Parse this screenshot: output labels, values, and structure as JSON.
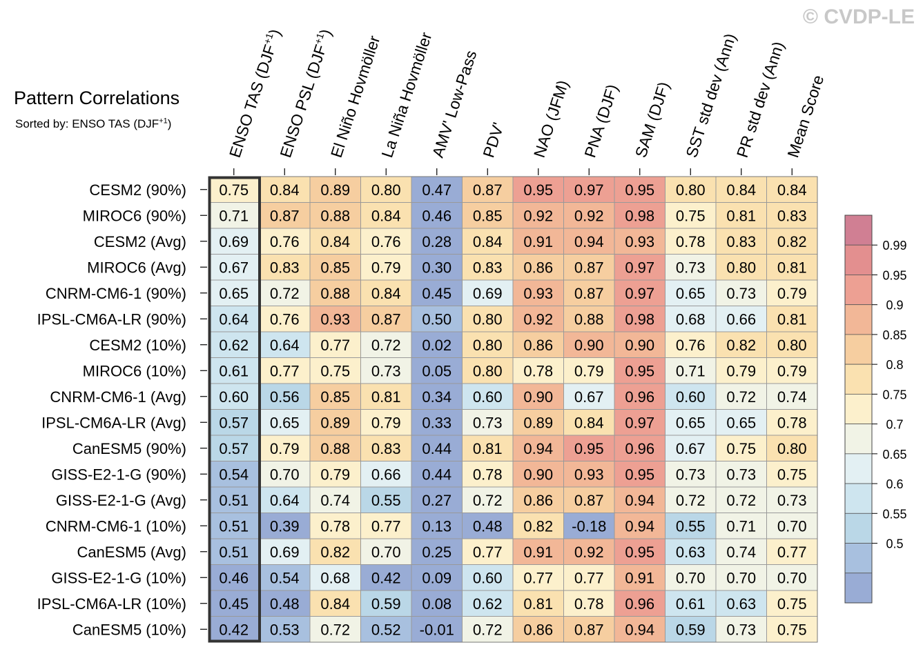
{
  "watermark": "© CVDP-LE",
  "title": "Pattern Correlations",
  "subtitle": "Sorted by: ENSO TAS (DJF+1)",
  "chart_data": {
    "type": "heatmap",
    "title": "Pattern Correlations",
    "subtitle": "Sorted by: ENSO TAS (DJF+1)",
    "columns": [
      "ENSO TAS (DJF+1)",
      "ENSO PSL (DJF+1)",
      "El Niño Hovmöller",
      "La Niña Hovmöller",
      "AMV' Low-Pass",
      "PDV'",
      "NAO (JFM)",
      "PNA (DJF)",
      "SAM (DJF)",
      "SST std dev (Ann)",
      "PR std dev (Ann)",
      "Mean Score"
    ],
    "rows": [
      "CESM2 (90%)",
      "MIROC6 (90%)",
      "CESM2 (Avg)",
      "MIROC6 (Avg)",
      "CNRM-CM6-1 (90%)",
      "IPSL-CM6A-LR (90%)",
      "CESM2 (10%)",
      "MIROC6 (10%)",
      "CNRM-CM6-1 (Avg)",
      "IPSL-CM6A-LR (Avg)",
      "CanESM5 (90%)",
      "GISS-E2-1-G (90%)",
      "GISS-E2-1-G (Avg)",
      "CNRM-CM6-1 (10%)",
      "CanESM5 (Avg)",
      "GISS-E2-1-G (10%)",
      "IPSL-CM6A-LR (10%)",
      "CanESM5 (10%)"
    ],
    "values": [
      [
        "0.75",
        "0.84",
        "0.89",
        "0.80",
        "0.47",
        "0.87",
        "0.95",
        "0.97",
        "0.95",
        "0.80",
        "0.84",
        "0.84"
      ],
      [
        "0.71",
        "0.87",
        "0.88",
        "0.84",
        "0.46",
        "0.85",
        "0.92",
        "0.92",
        "0.98",
        "0.75",
        "0.81",
        "0.83"
      ],
      [
        "0.69",
        "0.76",
        "0.84",
        "0.76",
        "0.28",
        "0.84",
        "0.91",
        "0.94",
        "0.93",
        "0.78",
        "0.83",
        "0.82"
      ],
      [
        "0.67",
        "0.83",
        "0.85",
        "0.79",
        "0.30",
        "0.83",
        "0.86",
        "0.87",
        "0.97",
        "0.73",
        "0.80",
        "0.81"
      ],
      [
        "0.65",
        "0.72",
        "0.88",
        "0.84",
        "0.45",
        "0.69",
        "0.93",
        "0.87",
        "0.97",
        "0.65",
        "0.73",
        "0.79"
      ],
      [
        "0.64",
        "0.76",
        "0.93",
        "0.87",
        "0.50",
        "0.80",
        "0.92",
        "0.88",
        "0.98",
        "0.68",
        "0.66",
        "0.81"
      ],
      [
        "0.62",
        "0.64",
        "0.77",
        "0.72",
        "0.02",
        "0.80",
        "0.86",
        "0.90",
        "0.90",
        "0.76",
        "0.82",
        "0.80"
      ],
      [
        "0.61",
        "0.77",
        "0.75",
        "0.73",
        "0.05",
        "0.80",
        "0.78",
        "0.79",
        "0.95",
        "0.71",
        "0.79",
        "0.79"
      ],
      [
        "0.60",
        "0.56",
        "0.85",
        "0.81",
        "0.34",
        "0.60",
        "0.90",
        "0.67",
        "0.96",
        "0.60",
        "0.72",
        "0.74"
      ],
      [
        "0.57",
        "0.65",
        "0.89",
        "0.79",
        "0.33",
        "0.73",
        "0.89",
        "0.84",
        "0.97",
        "0.65",
        "0.65",
        "0.78"
      ],
      [
        "0.57",
        "0.79",
        "0.88",
        "0.83",
        "0.44",
        "0.81",
        "0.94",
        "0.95",
        "0.96",
        "0.67",
        "0.75",
        "0.80"
      ],
      [
        "0.54",
        "0.70",
        "0.79",
        "0.66",
        "0.44",
        "0.78",
        "0.90",
        "0.93",
        "0.95",
        "0.73",
        "0.73",
        "0.75"
      ],
      [
        "0.51",
        "0.64",
        "0.74",
        "0.55",
        "0.27",
        "0.72",
        "0.86",
        "0.87",
        "0.94",
        "0.72",
        "0.72",
        "0.73"
      ],
      [
        "0.51",
        "0.39",
        "0.78",
        "0.77",
        "0.13",
        "0.48",
        "0.82",
        "-0.18",
        "0.94",
        "0.55",
        "0.71",
        "0.70"
      ],
      [
        "0.51",
        "0.69",
        "0.82",
        "0.70",
        "0.25",
        "0.77",
        "0.91",
        "0.92",
        "0.95",
        "0.63",
        "0.74",
        "0.77"
      ],
      [
        "0.46",
        "0.54",
        "0.68",
        "0.42",
        "0.09",
        "0.60",
        "0.77",
        "0.77",
        "0.91",
        "0.70",
        "0.70",
        "0.70"
      ],
      [
        "0.45",
        "0.48",
        "0.84",
        "0.59",
        "0.08",
        "0.62",
        "0.81",
        "0.78",
        "0.96",
        "0.61",
        "0.63",
        "0.75"
      ],
      [
        "0.42",
        "0.53",
        "0.72",
        "0.52",
        "-0.01",
        "0.72",
        "0.86",
        "0.87",
        "0.94",
        "0.59",
        "0.73",
        "0.75"
      ]
    ],
    "highlighted_column": "ENSO TAS (DJF+1)",
    "colorbar": {
      "levels": [
        "0.99",
        "0.95",
        "0.9",
        "0.85",
        "0.8",
        "0.75",
        "0.7",
        "0.65",
        "0.6",
        "0.55",
        "0.5"
      ],
      "colors_top_to_bottom": [
        "#d07f93",
        "#e38f8f",
        "#eda093",
        "#f2b797",
        "#f6cea0",
        "#fae1b0",
        "#fcf0cc",
        "#f1f3e6",
        "#e3f0f3",
        "#cee5ef",
        "#bad7e7",
        "#a8c0df",
        "#99acd5"
      ]
    },
    "bins": [
      0.5,
      0.55,
      0.6,
      0.65,
      0.7,
      0.75,
      0.8,
      0.85,
      0.9,
      0.95,
      0.99
    ]
  }
}
